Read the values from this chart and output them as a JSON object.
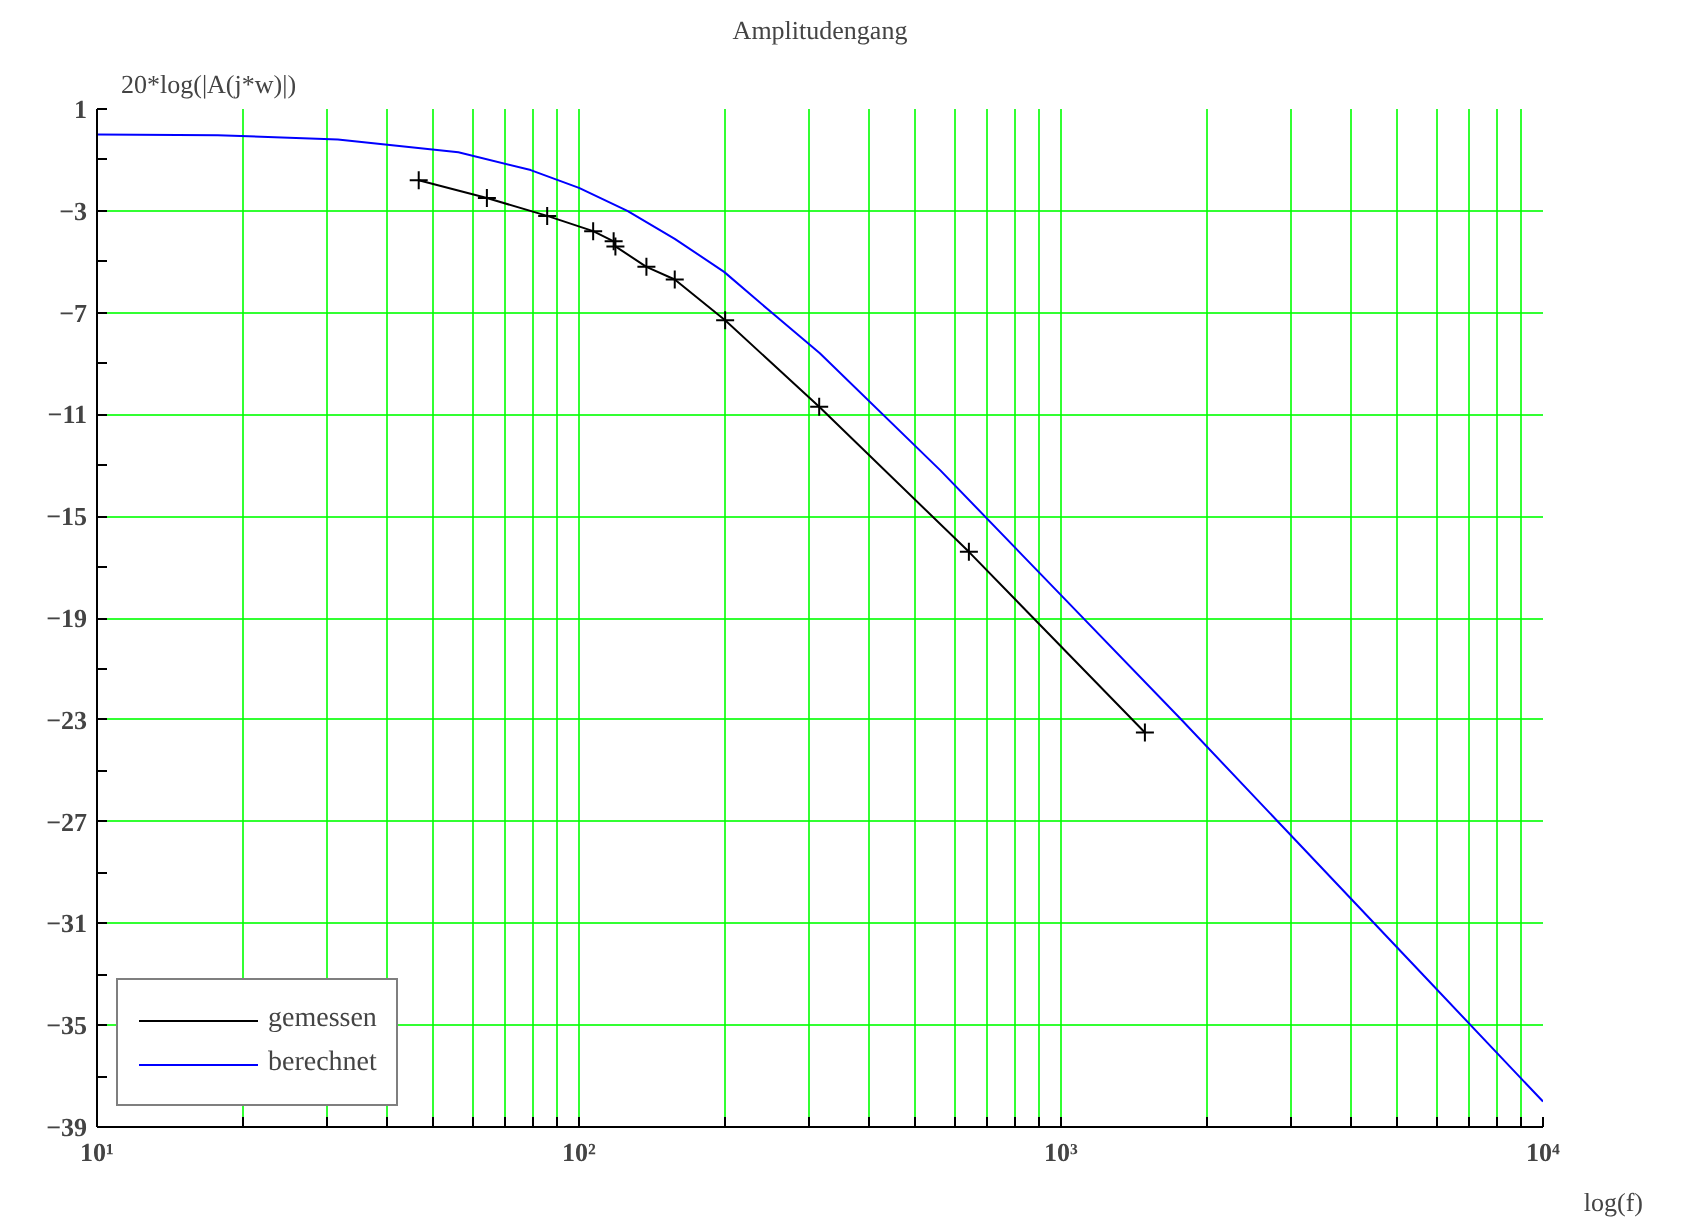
{
  "chart_data": {
    "type": "line",
    "title": "Amplitudengang",
    "xlabel": "log(f)",
    "ylabel": "20*log(|A(j*w)|)",
    "log": "x",
    "grid": true,
    "legend": "bottom left",
    "xlim": [
      10,
      10000
    ],
    "ylim": [
      -39,
      1
    ],
    "xticks": [
      {
        "value": 10,
        "label": "10¹"
      },
      {
        "value": 20,
        "label": null
      },
      {
        "value": 30,
        "label": null
      },
      {
        "value": 40,
        "label": null
      },
      {
        "value": 50,
        "label": null
      },
      {
        "value": 60,
        "label": null
      },
      {
        "value": 70,
        "label": null
      },
      {
        "value": 80,
        "label": null
      },
      {
        "value": 90,
        "label": null
      },
      {
        "value": 100,
        "label": "10²"
      },
      {
        "value": 200,
        "label": null
      },
      {
        "value": 300,
        "label": null
      },
      {
        "value": 400,
        "label": null
      },
      {
        "value": 500,
        "label": null
      },
      {
        "value": 600,
        "label": null
      },
      {
        "value": 700,
        "label": null
      },
      {
        "value": 800,
        "label": null
      },
      {
        "value": 900,
        "label": null
      },
      {
        "value": 1000,
        "label": "10³"
      },
      {
        "value": 2000,
        "label": null
      },
      {
        "value": 3000,
        "label": null
      },
      {
        "value": 4000,
        "label": null
      },
      {
        "value": 5000,
        "label": null
      },
      {
        "value": 6000,
        "label": null
      },
      {
        "value": 7000,
        "label": null
      },
      {
        "value": 8000,
        "label": null
      },
      {
        "value": 9000,
        "label": null
      },
      {
        "value": 10000,
        "label": "10⁴"
      }
    ],
    "yticks": [
      1,
      {
        "value": -1,
        "label": null
      },
      -3,
      {
        "value": -5,
        "label": null
      },
      -7,
      {
        "value": -9,
        "label": null
      },
      -11,
      {
        "value": -13,
        "label": null
      },
      -15,
      {
        "value": -17,
        "label": null
      },
      -19,
      {
        "value": -21,
        "label": null
      },
      -23,
      {
        "value": -25,
        "label": null
      },
      -27,
      {
        "value": -29,
        "label": null
      },
      -31,
      {
        "value": -33,
        "label": null
      },
      -35,
      {
        "value": -37,
        "label": null
      },
      -39
    ],
    "series": [
      {
        "name": "gemessen",
        "color": "#000000",
        "marker": "cross",
        "x": [
          46.5,
          64.4,
          85.9,
          107,
          118,
          119,
          138,
          158,
          201,
          315,
          644,
          1493
        ],
        "values": [
          -1.8,
          -2.5,
          -3.2,
          -3.8,
          -4.2,
          -4.4,
          -5.2,
          -5.7,
          -7.3,
          -10.7,
          -16.4,
          -23.5
        ]
      },
      {
        "name": "berechnet",
        "color": "#0000ff",
        "marker": "none",
        "x": [
          10,
          17.8,
          31.6,
          56.2,
          79.4,
          100,
          126,
          158,
          200,
          251,
          316,
          562,
          1000,
          1778,
          3162,
          5623,
          10000
        ],
        "values": [
          0.0,
          -0.03,
          -0.2,
          -0.7,
          -1.4,
          -2.1,
          -3.0,
          -4.1,
          -5.4,
          -7.0,
          -8.6,
          -13.2,
          -18.1,
          -23.0,
          -28.0,
          -33.0,
          -38.0
        ]
      }
    ]
  }
}
